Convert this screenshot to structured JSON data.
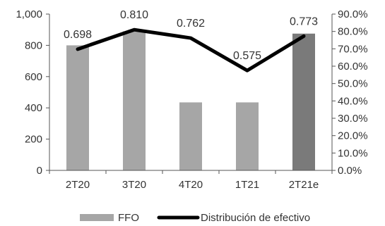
{
  "chart_data": {
    "type": "bar+line",
    "categories": [
      "2T20",
      "3T20",
      "4T20",
      "1T21",
      "2T21e"
    ],
    "series": [
      {
        "name": "FFO",
        "type": "bar",
        "axis": "left",
        "values": [
          800,
          890,
          435,
          435,
          875
        ],
        "colors": [
          "#a6a6a6",
          "#a6a6a6",
          "#a6a6a6",
          "#a6a6a6",
          "#7a7a7a"
        ]
      },
      {
        "name": "Distribución de efectivo",
        "type": "line",
        "axis": "right",
        "values": [
          0.698,
          0.81,
          0.762,
          0.575,
          0.773
        ],
        "labels": [
          "0.698",
          "0.810",
          "0.762",
          "0.575",
          "0.773"
        ],
        "color": "#000000"
      }
    ],
    "y_left": {
      "ylim": [
        0,
        1000
      ],
      "ticks": [
        0,
        200,
        400,
        600,
        800,
        1000
      ],
      "tick_labels": [
        "0",
        "200",
        "400",
        "600",
        "800",
        "1,000"
      ]
    },
    "y_right": {
      "ylim": [
        0,
        0.9
      ],
      "ticks": [
        0,
        0.1,
        0.2,
        0.3,
        0.4,
        0.5,
        0.6,
        0.7,
        0.8,
        0.9
      ],
      "tick_labels": [
        "0.0%",
        "10.0%",
        "20.0%",
        "30.0%",
        "40.0%",
        "50.0%",
        "60.0%",
        "70.0%",
        "80.0%",
        "90.0%"
      ]
    },
    "grid": false,
    "legend": {
      "placement": "bottom",
      "entries": [
        "FFO",
        "Distribución de efectivo"
      ]
    }
  }
}
